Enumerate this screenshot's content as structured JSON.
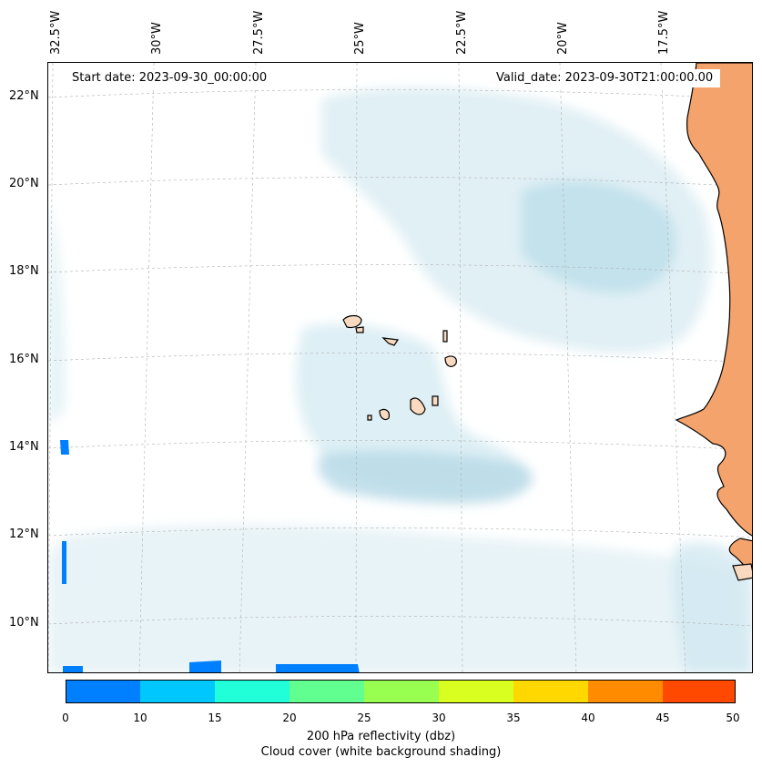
{
  "header": {
    "start_date": "Start date: 2023-09-30_00:00:00",
    "valid_date": "Valid_date: 2023-09-30T21:00:00.00"
  },
  "axes": {
    "lon_labels": [
      "32.5°W",
      "30°W",
      "27.5°W",
      "25°W",
      "22.5°W",
      "20°W",
      "17.5°W"
    ],
    "lat_labels": [
      "22°N",
      "20°N",
      "18°N",
      "16°N",
      "14°N",
      "12°N",
      "10°N"
    ]
  },
  "colorbar": {
    "ticks": [
      "0",
      "10",
      "15",
      "20",
      "25",
      "30",
      "35",
      "40",
      "45",
      "50"
    ],
    "colors": [
      "#0080ff",
      "#00c8ff",
      "#20ffd8",
      "#60ff90",
      "#98ff50",
      "#d8ff20",
      "#ffd800",
      "#ff8c00",
      "#ff4800"
    ],
    "title": "200 hPa reflectivity (dbz)",
    "subtitle": "Cloud cover (white background shading)"
  },
  "map": {
    "ocean_color": "#ffffff",
    "cloud_color": "#cfe8f0",
    "land_color": "#f4a36c",
    "island_color": "#f9d9bf"
  }
}
